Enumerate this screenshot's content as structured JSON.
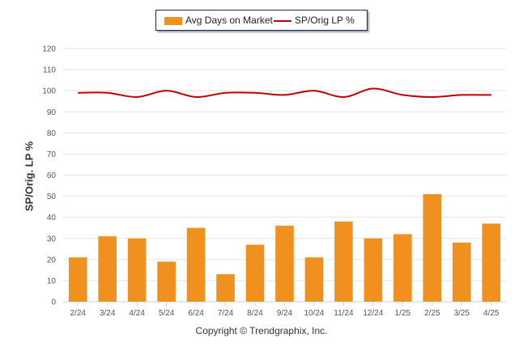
{
  "chart_data": {
    "type": "bar",
    "categories": [
      "2/24",
      "3/24",
      "4/24",
      "5/24",
      "6/24",
      "7/24",
      "8/24",
      "9/24",
      "10/24",
      "11/24",
      "12/24",
      "1/25",
      "2/25",
      "3/25",
      "4/25"
    ],
    "series": [
      {
        "name": "Avg Days on Market",
        "type": "bar",
        "color": "#f0901e",
        "values": [
          21,
          31,
          30,
          19,
          35,
          13,
          27,
          36,
          21,
          38,
          30,
          32,
          51,
          28,
          37
        ]
      },
      {
        "name": "SP/Orig LP %",
        "type": "line",
        "color": "#c00000",
        "values": [
          99,
          99,
          97,
          100,
          97,
          99,
          99,
          98,
          100,
          97,
          101,
          98,
          97,
          98,
          98
        ]
      }
    ],
    "ylabel": "SP/Orig. LP %",
    "ylim": [
      0,
      120
    ],
    "yticks": [
      "0",
      "10",
      "20",
      "30",
      "40",
      "50",
      "60",
      "70",
      "80",
      "90",
      "100",
      "110",
      "120"
    ],
    "grid": true,
    "legend_position": "top-center"
  },
  "legend": {
    "bar_label": "Avg Days on Market",
    "line_label": "SP/Orig LP %",
    "bar_color": "#f0901e",
    "line_color": "#c00000"
  },
  "footer": {
    "copyright": "Copyright © Trendgraphix, Inc."
  }
}
